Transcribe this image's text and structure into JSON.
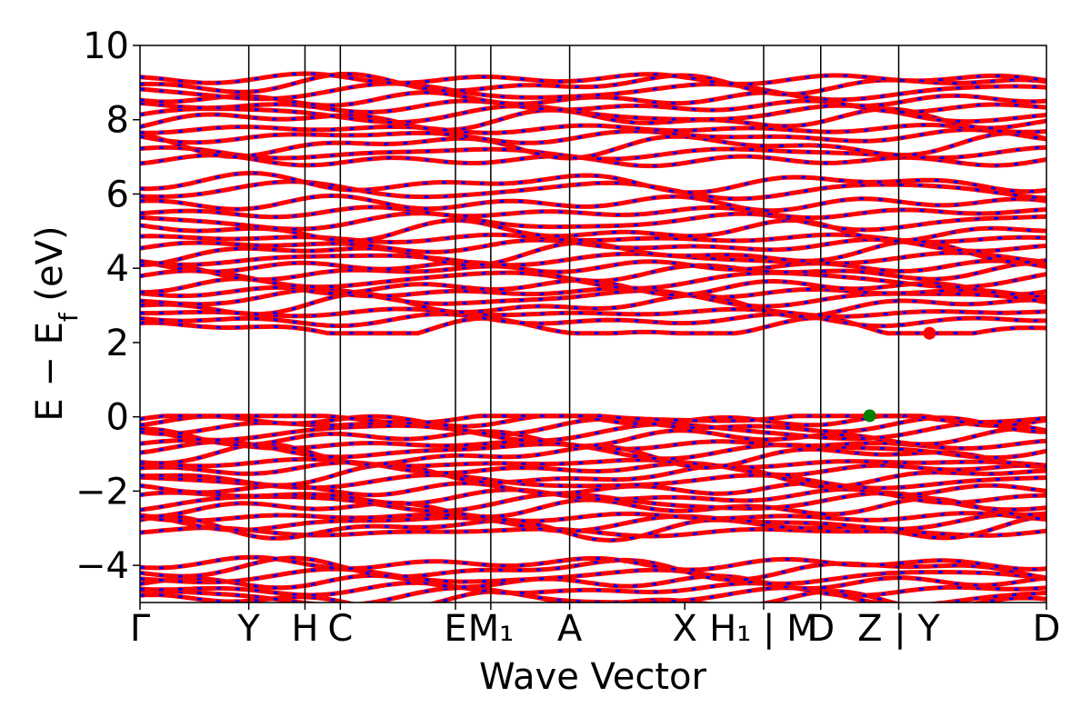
{
  "chart_data": {
    "type": "line",
    "title": "",
    "xlabel": "Wave Vector",
    "ylabel": {
      "main": "E − E",
      "sub": "f",
      "unit": " (eV)"
    },
    "ylim": [
      -5,
      10
    ],
    "xlim": [
      0,
      1
    ],
    "yticks": [
      {
        "value": 10,
        "label": "10"
      },
      {
        "value": 8,
        "label": "8"
      },
      {
        "value": 6,
        "label": "6"
      },
      {
        "value": 4,
        "label": "4"
      },
      {
        "value": 2,
        "label": "2"
      },
      {
        "value": 0,
        "label": "0"
      },
      {
        "value": -2,
        "label": "−2"
      },
      {
        "value": -4,
        "label": "−4"
      }
    ],
    "kpoints": [
      {
        "pos": 0.0,
        "label": "Γ",
        "line": false
      },
      {
        "pos": 0.12,
        "label": "Y",
        "line": true
      },
      {
        "pos": 0.182,
        "label": "H",
        "line": true
      },
      {
        "pos": 0.221,
        "label": "C",
        "line": true
      },
      {
        "pos": 0.348,
        "label": "E",
        "line": true
      },
      {
        "pos": 0.387,
        "label": "M₁",
        "line": true
      },
      {
        "pos": 0.474,
        "label": "A",
        "line": true
      },
      {
        "pos": 0.601,
        "label": "X",
        "line": false
      },
      {
        "pos": 0.688,
        "label": "H₁ | M",
        "line": true
      },
      {
        "pos": 0.751,
        "label": "D",
        "line": true
      },
      {
        "pos": 0.837,
        "label": "Z | Y",
        "line": true
      },
      {
        "pos": 1.0,
        "label": "D",
        "line": false
      }
    ],
    "series_colors": {
      "spin_up": "#0000ff",
      "spin_down": "#ff0000"
    },
    "vbm": {
      "x": 0.805,
      "y": 0.03,
      "color": "#008000"
    },
    "cbm": {
      "x": 0.871,
      "y": 2.25,
      "color": "#ff0000"
    },
    "band_base_energies": [
      -4.95,
      -4.85,
      -4.65,
      -4.45,
      -4.3,
      -4.1,
      -3.95,
      -3.1,
      -3.0,
      -2.85,
      -2.7,
      -2.45,
      -2.3,
      -2.15,
      -1.95,
      -1.75,
      -1.6,
      -1.4,
      -1.25,
      -1.05,
      -0.9,
      -0.75,
      -0.55,
      -0.4,
      -0.25,
      -0.1,
      0.0,
      2.35,
      2.6,
      2.8,
      3.0,
      3.2,
      3.35,
      3.5,
      3.7,
      3.9,
      4.05,
      4.25,
      4.4,
      4.6,
      4.8,
      5.0,
      5.25,
      5.5,
      5.75,
      6.1,
      6.3,
      6.9,
      7.1,
      7.3,
      7.55,
      7.75,
      8.0,
      8.15,
      8.35,
      8.55,
      8.75,
      8.95,
      9.1
    ]
  }
}
